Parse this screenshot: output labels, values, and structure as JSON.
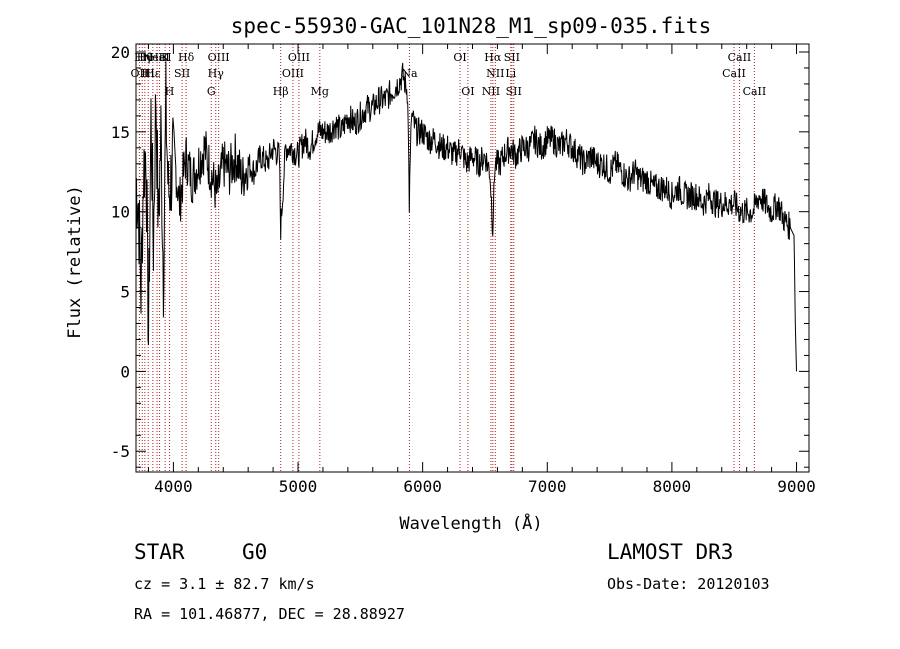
{
  "chart_data": {
    "type": "line",
    "title": "spec-55930-GAC_101N28_M1_sp09-035.fits",
    "xlabel": "Wavelength (Å)",
    "ylabel": "Flux (relative)",
    "xlim": [
      3700,
      9100
    ],
    "ylim": [
      -6.3,
      20.5
    ],
    "xticks": [
      4000,
      5000,
      6000,
      7000,
      8000,
      9000
    ],
    "yticks": [
      -5,
      0,
      5,
      10,
      15,
      20
    ],
    "grid": false,
    "legend": "none",
    "series": [
      {
        "name": "flux",
        "x": [
          3700,
          3720,
          3740,
          3760,
          3780,
          3800,
          3820,
          3840,
          3860,
          3880,
          3900,
          3920,
          3940,
          3960,
          3980,
          4000,
          4050,
          4100,
          4150,
          4200,
          4250,
          4300,
          4350,
          4400,
          4450,
          4500,
          4550,
          4600,
          4650,
          4700,
          4750,
          4800,
          4850,
          4861,
          4900,
          4950,
          5000,
          5050,
          5100,
          5150,
          5200,
          5250,
          5300,
          5350,
          5400,
          5450,
          5500,
          5550,
          5600,
          5650,
          5700,
          5750,
          5800,
          5840,
          5880,
          5893,
          5910,
          5950,
          6000,
          6050,
          6100,
          6150,
          6200,
          6250,
          6300,
          6350,
          6400,
          6450,
          6500,
          6540,
          6563,
          6580,
          6620,
          6650,
          6700,
          6750,
          6800,
          6850,
          6900,
          6950,
          7000,
          7050,
          7100,
          7150,
          7200,
          7250,
          7300,
          7350,
          7400,
          7450,
          7500,
          7550,
          7600,
          7650,
          7700,
          7750,
          7800,
          7850,
          7900,
          7950,
          8000,
          8050,
          8100,
          8150,
          8200,
          8250,
          8300,
          8350,
          8400,
          8450,
          8500,
          8550,
          8600,
          8650,
          8700,
          8750,
          8800,
          8850,
          8900,
          8950,
          8980,
          8990,
          9000
        ],
        "y": [
          12.0,
          10.5,
          5.0,
          12.5,
          14.0,
          2.0,
          16.0,
          8.0,
          17.5,
          9.0,
          15.0,
          6.0,
          16.5,
          11.0,
          12.0,
          14.0,
          10.5,
          13.5,
          12.0,
          13.0,
          14.0,
          12.5,
          11.0,
          13.0,
          12.5,
          13.5,
          12.0,
          13.0,
          12.5,
          13.5,
          13.0,
          14.0,
          13.5,
          9.0,
          14.0,
          14.0,
          13.5,
          14.5,
          14.0,
          15.0,
          15.0,
          15.0,
          15.5,
          15.0,
          16.0,
          15.5,
          16.0,
          16.5,
          16.5,
          17.0,
          17.0,
          17.5,
          18.0,
          18.5,
          17.5,
          10.5,
          16.0,
          15.0,
          15.0,
          14.5,
          14.5,
          14.0,
          14.0,
          13.5,
          14.0,
          13.0,
          13.5,
          13.0,
          13.5,
          12.5,
          9.0,
          13.0,
          13.0,
          13.5,
          14.0,
          13.5,
          14.0,
          14.0,
          14.5,
          14.0,
          14.5,
          14.5,
          14.0,
          14.5,
          14.0,
          13.5,
          13.0,
          13.5,
          13.0,
          13.0,
          12.5,
          13.0,
          12.5,
          12.0,
          12.5,
          12.0,
          12.0,
          11.5,
          11.5,
          11.5,
          11.0,
          11.5,
          11.0,
          11.0,
          11.0,
          10.5,
          11.0,
          10.5,
          10.5,
          10.5,
          10.5,
          10.0,
          10.0,
          10.0,
          11.0,
          10.5,
          10.0,
          10.5,
          9.5,
          9.0,
          8.5,
          3.0,
          0.0
        ]
      }
    ],
    "annotations": [
      {
        "x": 3727,
        "label": "OII",
        "row": 2
      },
      {
        "x": 3750,
        "label": "Hη",
        "row": 1
      },
      {
        "x": 3771,
        "label": "Hθ",
        "row": 1
      },
      {
        "x": 3798,
        "label": "Hι",
        "row": 2
      },
      {
        "x": 3835,
        "label": "Hε",
        "row": 2
      },
      {
        "x": 3869,
        "label": "NeIII",
        "row": 1
      },
      {
        "x": 3889,
        "label": "HeI",
        "row": 1
      },
      {
        "x": 3934,
        "label": "K",
        "row": 1
      },
      {
        "x": 3969,
        "label": "H",
        "row": 3
      },
      {
        "x": 4070,
        "label": "SII",
        "row": 2
      },
      {
        "x": 4102,
        "label": "Hδ",
        "row": 1
      },
      {
        "x": 4304,
        "label": "G",
        "row": 3
      },
      {
        "x": 4340,
        "label": "Hγ",
        "row": 2
      },
      {
        "x": 4363,
        "label": "OIII",
        "row": 1
      },
      {
        "x": 4861,
        "label": "Hβ",
        "row": 3
      },
      {
        "x": 4959,
        "label": "OIII",
        "row": 2
      },
      {
        "x": 5007,
        "label": "OIII",
        "row": 1
      },
      {
        "x": 5175,
        "label": "Mg",
        "row": 3
      },
      {
        "x": 5894,
        "label": "Na",
        "row": 2
      },
      {
        "x": 6300,
        "label": "OI",
        "row": 1
      },
      {
        "x": 6363,
        "label": "OI",
        "row": 3
      },
      {
        "x": 6548,
        "label": "NII",
        "row": 3
      },
      {
        "x": 6563,
        "label": "Hα",
        "row": 1
      },
      {
        "x": 6583,
        "label": "NII",
        "row": 2
      },
      {
        "x": 6707,
        "label": "Li",
        "row": 2
      },
      {
        "x": 6716,
        "label": "SII",
        "row": 1
      },
      {
        "x": 6731,
        "label": "SII",
        "row": 3
      },
      {
        "x": 8498,
        "label": "CaII",
        "row": 2
      },
      {
        "x": 8542,
        "label": "CaII",
        "row": 1
      },
      {
        "x": 8662,
        "label": "CaII",
        "row": 3
      }
    ]
  },
  "info": {
    "class": "STAR",
    "subclass": "G0",
    "survey": "LAMOST DR3",
    "redshift": "cz = 3.1 ± 82.7 km/s",
    "obs_date": "Obs-Date: 20120103",
    "coords": "RA = 101.46877, DEC =  28.88927"
  }
}
